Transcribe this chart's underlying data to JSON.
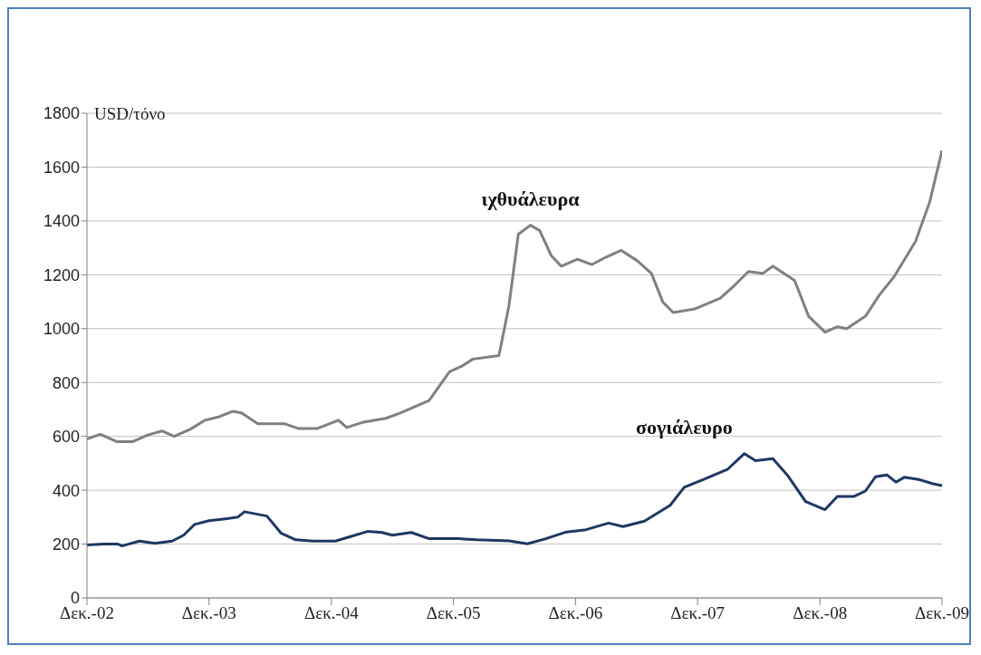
{
  "chart_data": {
    "type": "line",
    "ylabel": "USD/τόνο",
    "xlim": [
      "2002-12-01",
      "2009-12-01"
    ],
    "xticks": [
      {
        "value": "2002-12-01",
        "label": "Δεκ.-02"
      },
      {
        "value": "2003-12-01",
        "label": "Δεκ.-03"
      },
      {
        "value": "2004-12-01",
        "label": "Δεκ.-04"
      },
      {
        "value": "2005-12-01",
        "label": "Δεκ.-05"
      },
      {
        "value": "2006-12-01",
        "label": "Δεκ.-06"
      },
      {
        "value": "2007-12-01",
        "label": "Δεκ.-07"
      },
      {
        "value": "2008-12-01",
        "label": "Δεκ.-08"
      },
      {
        "value": "2009-12-01",
        "label": "Δεκ.-09"
      }
    ],
    "ylim": [
      0,
      1800
    ],
    "yticks": [
      0,
      200,
      400,
      600,
      800,
      1000,
      1200,
      1400,
      1600,
      1800
    ],
    "grid": "y",
    "legend": false,
    "marker": "none",
    "line_style": "solid",
    "series": [
      {
        "name": "ιχθυάλευρα",
        "color": "#808080",
        "x": [
          "2002-12-01",
          "2003-01-10",
          "2003-03-01",
          "2003-04-16",
          "2003-06-01",
          "2003-07-13",
          "2003-08-19",
          "2003-10-07",
          "2003-11-19",
          "2004-01-01",
          "2004-02-10",
          "2004-03-07",
          "2004-04-25",
          "2004-07-13",
          "2004-08-25",
          "2004-10-19",
          "2004-12-22",
          "2005-01-16",
          "2005-03-07",
          "2005-05-13",
          "2005-06-25",
          "2005-09-19",
          "2005-11-19",
          "2005-12-25",
          "2006-01-28",
          "2006-04-16",
          "2006-05-16",
          "2006-06-13",
          "2006-07-19",
          "2006-08-16",
          "2006-09-19",
          "2006-10-19",
          "2006-12-07",
          "2007-01-19",
          "2007-03-01",
          "2007-04-16",
          "2007-06-04",
          "2007-07-16",
          "2007-08-19",
          "2007-09-19",
          "2007-11-22",
          "2008-02-07",
          "2008-03-19",
          "2008-05-01",
          "2008-06-13",
          "2008-07-13",
          "2008-09-16",
          "2008-10-28",
          "2008-12-16",
          "2009-01-22",
          "2009-02-19",
          "2009-04-16",
          "2009-05-28",
          "2009-07-10",
          "2009-09-13",
          "2009-10-25",
          "2009-12-01"
        ],
        "values": [
          590,
          608,
          580,
          580,
          605,
          620,
          600,
          627,
          660,
          673,
          693,
          687,
          647,
          647,
          629,
          629,
          660,
          633,
          653,
          667,
          687,
          733,
          840,
          860,
          887,
          900,
          1086,
          1351,
          1384,
          1364,
          1272,
          1232,
          1258,
          1238,
          1265,
          1291,
          1252,
          1205,
          1099,
          1060,
          1073,
          1113,
          1159,
          1212,
          1205,
          1232,
          1179,
          1046,
          987,
          1007,
          1000,
          1046,
          1126,
          1192,
          1325,
          1470,
          1662
        ]
      },
      {
        "name": "σογιάλευρο",
        "color": "#1f3864",
        "x": [
          "2002-12-01",
          "2003-01-22",
          "2003-03-04",
          "2003-03-16",
          "2003-05-07",
          "2003-06-22",
          "2003-08-13",
          "2003-09-16",
          "2003-10-19",
          "2003-12-01",
          "2004-01-13",
          "2004-02-25",
          "2004-03-16",
          "2004-05-22",
          "2004-07-04",
          "2004-08-16",
          "2004-10-07",
          "2004-12-13",
          "2005-01-25",
          "2005-03-19",
          "2005-05-01",
          "2005-06-01",
          "2005-07-28",
          "2005-09-19",
          "2005-12-16",
          "2006-02-07",
          "2006-05-16",
          "2006-07-10",
          "2006-09-01",
          "2006-11-04",
          "2006-12-28",
          "2007-03-10",
          "2007-04-22",
          "2007-06-25",
          "2007-09-10",
          "2007-10-22",
          "2007-12-13",
          "2008-02-28",
          "2008-04-19",
          "2008-05-22",
          "2008-07-13",
          "2008-08-25",
          "2008-10-19",
          "2008-12-16",
          "2009-01-22",
          "2009-03-13",
          "2009-04-16",
          "2009-05-16",
          "2009-06-19",
          "2009-07-16",
          "2009-08-10",
          "2009-09-22",
          "2009-11-04",
          "2009-12-01"
        ],
        "values": [
          197,
          200,
          200,
          193,
          211,
          203,
          211,
          233,
          273,
          287,
          293,
          300,
          320,
          304,
          240,
          216,
          211,
          211,
          227,
          247,
          243,
          233,
          243,
          220,
          220,
          216,
          212,
          201,
          219,
          245,
          252,
          278,
          265,
          285,
          344,
          411,
          437,
          477,
          536,
          510,
          517,
          457,
          358,
          328,
          377,
          377,
          397,
          450,
          457,
          430,
          448,
          440,
          424,
          417
        ]
      }
    ]
  }
}
